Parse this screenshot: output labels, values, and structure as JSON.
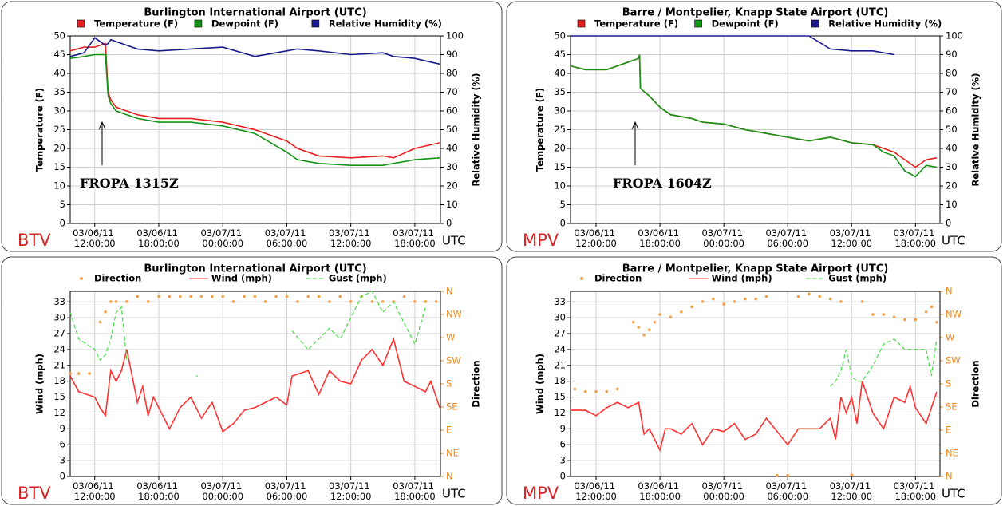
{
  "chart_data": [
    {
      "type": "line",
      "title": "Burlington International Airport  (UTC)",
      "station": "BTV",
      "timezone": "UTC",
      "annotation": "FROPA 1315Z",
      "ylabel": "Temperature (F)",
      "y2label": "Relative Humidity (%)",
      "xlim": [
        "03/06/11 09:42:00",
        "03/07/11 20:24:00"
      ],
      "xticks": [
        "03/06/11 12:00:00",
        "03/06/11 18:00:00",
        "03/07/11 00:00:00",
        "03/07/11 06:00:00",
        "03/07/11 12:00:00",
        "03/07/11 18:00:00"
      ],
      "ylim": [
        0,
        50
      ],
      "yticks": [
        0,
        5,
        10,
        15,
        20,
        25,
        30,
        35,
        40,
        45,
        50
      ],
      "y2lim": [
        0,
        100
      ],
      "y2ticks": [
        0,
        10,
        20,
        30,
        40,
        50,
        60,
        70,
        80,
        90,
        100
      ],
      "grid": true,
      "x": [
        "03/06/11 09:42:00",
        "03/06/11 11:00:00",
        "03/06/11 12:00:00",
        "03/06/11 13:00:00",
        "03/06/11 13:15:00",
        "03/06/11 13:30:00",
        "03/06/11 14:00:00",
        "03/06/11 15:00:00",
        "03/06/11 16:00:00",
        "03/06/11 18:00:00",
        "03/06/11 21:00:00",
        "03/07/11 00:00:00",
        "03/07/11 03:00:00",
        "03/07/11 06:00:00",
        "03/07/11 07:00:00",
        "03/07/11 09:00:00",
        "03/07/11 12:00:00",
        "03/07/11 15:00:00",
        "03/07/11 16:00:00",
        "03/07/11 18:00:00",
        "03/07/11 20:20:00"
      ],
      "series": [
        {
          "name": "Temperature (F)",
          "color": "#e82020",
          "style": "solid",
          "values": [
            46,
            47,
            47,
            48,
            35,
            33,
            31,
            30,
            29,
            28,
            28,
            27,
            25,
            22,
            20,
            18,
            17.5,
            18,
            17.5,
            20,
            21.5
          ]
        },
        {
          "name": "Dewpoint (F)",
          "color": "#139413",
          "style": "solid",
          "values": [
            44,
            44.5,
            45,
            45,
            34,
            32,
            30,
            29,
            28,
            27,
            27,
            26,
            24,
            19,
            17,
            16,
            15.5,
            15.5,
            16,
            17,
            17.5
          ]
        },
        {
          "name": "Relative Humidity (%)",
          "color": "#1a1a8c",
          "style": "solid",
          "axis": "y2",
          "values": [
            89,
            91,
            99,
            95,
            96,
            98,
            97,
            95,
            93,
            92,
            93,
            94,
            89,
            92,
            93,
            92,
            90,
            91,
            89,
            88,
            85
          ]
        }
      ]
    },
    {
      "type": "line",
      "title": "Barre / Montpelier, Knapp State Airport  (UTC)",
      "station": "MPV",
      "timezone": "UTC",
      "annotation": "FROPA 1604Z",
      "ylabel": "Temperature (F)",
      "y2label": "Relative Humidity (%)",
      "xlim": [
        "03/06/11 09:36:00",
        "03/07/11 20:18:00"
      ],
      "xticks": [
        "03/06/11 12:00:00",
        "03/06/11 18:00:00",
        "03/07/11 00:00:00",
        "03/07/11 06:00:00",
        "03/07/11 12:00:00",
        "03/07/11 18:00:00"
      ],
      "ylim": [
        0,
        50
      ],
      "yticks": [
        0,
        5,
        10,
        15,
        20,
        25,
        30,
        35,
        40,
        45,
        50
      ],
      "y2lim": [
        0,
        100
      ],
      "y2ticks": [
        0,
        10,
        20,
        30,
        40,
        50,
        60,
        70,
        80,
        90,
        100
      ],
      "grid": true,
      "x": [
        "03/06/11 09:36:00",
        "03/06/11 11:00:00",
        "03/06/11 12:00:00",
        "03/06/11 13:00:00",
        "03/06/11 14:00:00",
        "03/06/11 15:00:00",
        "03/06/11 16:00:00",
        "03/06/11 16:05:00",
        "03/06/11 16:10:00",
        "03/06/11 17:00:00",
        "03/06/11 18:00:00",
        "03/06/11 19:00:00",
        "03/06/11 21:00:00",
        "03/06/11 22:00:00",
        "03/07/11 00:00:00",
        "03/07/11 02:00:00",
        "03/07/11 04:00:00",
        "03/07/11 06:00:00",
        "03/07/11 08:00:00",
        "03/07/11 10:00:00",
        "03/07/11 12:00:00",
        "03/07/11 14:00:00",
        "03/07/11 15:00:00",
        "03/07/11 16:00:00",
        "03/07/11 17:00:00",
        "03/07/11 18:00:00",
        "03/07/11 19:00:00",
        "03/07/11 20:00:00"
      ],
      "series": [
        {
          "name": "Temperature (F)",
          "color": "#e82020",
          "style": "solid",
          "values": [
            42,
            41,
            41,
            41,
            42,
            43,
            44,
            45,
            36,
            34,
            31,
            29,
            28,
            27,
            26.5,
            25,
            24,
            23,
            22,
            23,
            21.5,
            21,
            20,
            19,
            17,
            15,
            17,
            17.5
          ]
        },
        {
          "name": "Dewpoint (F)",
          "color": "#139413",
          "style": "solid",
          "values": [
            42,
            41,
            41,
            41,
            42,
            43,
            44,
            45,
            36,
            34,
            31,
            29,
            28,
            27,
            26.5,
            25,
            24,
            23,
            22,
            23,
            21.5,
            21,
            19,
            18,
            14,
            12.5,
            15.5,
            15
          ]
        },
        {
          "name": "Relative Humidity (%)",
          "color": "#1a1a8c",
          "style": "solid",
          "axis": "y2",
          "values": [
            100,
            100,
            100,
            100,
            100,
            100,
            100,
            100,
            100,
            100,
            100,
            100,
            100,
            100,
            100,
            100,
            100,
            100,
            100,
            93,
            92,
            92,
            91,
            90,
            null,
            null,
            null,
            null
          ]
        }
      ]
    },
    {
      "type": "line",
      "title": "Burlington International Airport  (UTC)",
      "station": "BTV",
      "timezone": "UTC",
      "ylabel": "Wind (mph)",
      "y2label": "Direction",
      "xlim": [
        "03/06/11 09:42:00",
        "03/07/11 20:24:00"
      ],
      "xticks": [
        "03/06/11 12:00:00",
        "03/06/11 18:00:00",
        "03/07/11 00:00:00",
        "03/07/11 06:00:00",
        "03/07/11 12:00:00",
        "03/07/11 18:00:00"
      ],
      "ylim": [
        0,
        35
      ],
      "yticks": [
        0,
        3,
        6,
        9,
        12,
        15,
        18,
        21,
        24,
        27,
        30,
        33
      ],
      "y2lim": [
        0,
        360
      ],
      "y2ticks": [
        {
          "value": 0,
          "label": "N"
        },
        {
          "value": 45,
          "label": "NE"
        },
        {
          "value": 90,
          "label": "E"
        },
        {
          "value": 135,
          "label": "SE"
        },
        {
          "value": 180,
          "label": "S"
        },
        {
          "value": 225,
          "label": "SW"
        },
        {
          "value": 270,
          "label": "W"
        },
        {
          "value": 315,
          "label": "NW"
        },
        {
          "value": 360,
          "label": "N"
        }
      ],
      "grid": true,
      "x": [
        "03/06/11 09:42:00",
        "03/06/11 10:30:00",
        "03/06/11 12:00:00",
        "03/06/11 12:30:00",
        "03/06/11 13:00:00",
        "03/06/11 13:30:00",
        "03/06/11 14:00:00",
        "03/06/11 14:30:00",
        "03/06/11 15:00:00",
        "03/06/11 16:00:00",
        "03/06/11 16:30:00",
        "03/06/11 17:00:00",
        "03/06/11 17:30:00",
        "03/06/11 19:00:00",
        "03/06/11 20:00:00",
        "03/06/11 21:00:00",
        "03/06/11 21:30:00",
        "03/06/11 22:00:00",
        "03/06/11 23:00:00",
        "03/07/11 00:00:00",
        "03/07/11 01:00:00",
        "03/07/11 02:00:00",
        "03/07/11 03:00:00",
        "03/07/11 05:00:00",
        "03/07/11 06:00:00",
        "03/07/11 06:30:00",
        "03/07/11 08:00:00",
        "03/07/11 09:00:00",
        "03/07/11 10:00:00",
        "03/07/11 11:00:00",
        "03/07/11 12:00:00",
        "03/07/11 13:00:00",
        "03/07/11 14:00:00",
        "03/07/11 15:00:00",
        "03/07/11 16:00:00",
        "03/07/11 17:00:00",
        "03/07/11 18:00:00",
        "03/07/11 19:00:00",
        "03/07/11 19:30:00",
        "03/07/11 20:20:00"
      ],
      "series": [
        {
          "name": "Direction",
          "color": "#f5a04a",
          "style": "dots",
          "axis": "y2",
          "x": [
            "03/06/11 09:42:00",
            "03/06/11 10:30:00",
            "03/06/11 11:30:00",
            "03/06/11 12:30:00",
            "03/06/11 13:00:00",
            "03/06/11 13:30:00",
            "03/06/11 14:00:00",
            "03/06/11 15:00:00",
            "03/06/11 16:00:00",
            "03/06/11 17:00:00",
            "03/06/11 18:00:00",
            "03/06/11 19:00:00",
            "03/06/11 20:00:00",
            "03/06/11 21:00:00",
            "03/06/11 22:00:00",
            "03/06/11 23:00:00",
            "03/07/11 00:00:00",
            "03/07/11 01:00:00",
            "03/07/11 02:00:00",
            "03/07/11 03:00:00",
            "03/07/11 04:00:00",
            "03/07/11 05:00:00",
            "03/07/11 06:00:00",
            "03/07/11 07:00:00",
            "03/07/11 08:00:00",
            "03/07/11 09:00:00",
            "03/07/11 10:00:00",
            "03/07/11 11:00:00",
            "03/07/11 12:00:00",
            "03/07/11 13:00:00",
            "03/07/11 14:00:00",
            "03/07/11 15:00:00",
            "03/07/11 16:00:00",
            "03/07/11 17:00:00",
            "03/07/11 18:00:00",
            "03/07/11 19:00:00",
            "03/07/11 20:00:00"
          ],
          "values": [
            200,
            200,
            200,
            300,
            320,
            340,
            340,
            340,
            350,
            340,
            350,
            350,
            350,
            350,
            350,
            350,
            350,
            340,
            350,
            350,
            340,
            350,
            350,
            340,
            350,
            350,
            340,
            350,
            340,
            350,
            340,
            340,
            340,
            350,
            340,
            340,
            340
          ]
        },
        {
          "name": "Wind (mph)",
          "color": "#ff3030",
          "style": "solid",
          "values": [
            19,
            16,
            15,
            13,
            11.5,
            20,
            18,
            20,
            24,
            14,
            17,
            11.5,
            15,
            9,
            13,
            15,
            13,
            11,
            14,
            8.5,
            10,
            12.5,
            13,
            15,
            13.5,
            19,
            20,
            15.5,
            20,
            18,
            17.5,
            22,
            24,
            21,
            26,
            18,
            17,
            16,
            18,
            13
          ]
        },
        {
          "name": "Gust (mph)",
          "color": "#44dd44",
          "style": "dashed",
          "values": [
            31,
            26,
            24,
            22,
            23,
            26,
            31,
            32,
            22,
            null,
            null,
            null,
            null,
            null,
            null,
            null,
            19,
            null,
            null,
            null,
            null,
            null,
            null,
            null,
            null,
            27.5,
            24,
            26,
            28,
            26,
            30,
            34,
            35,
            31,
            33,
            29,
            25,
            32,
            null,
            null
          ]
        }
      ]
    },
    {
      "type": "line",
      "title": "Barre / Montpelier, Knapp State Airport  (UTC)",
      "station": "MPV",
      "timezone": "UTC",
      "ylabel": "Wind (mph)",
      "y2label": "Direction",
      "xlim": [
        "03/06/11 09:36:00",
        "03/07/11 20:18:00"
      ],
      "xticks": [
        "03/06/11 12:00:00",
        "03/06/11 18:00:00",
        "03/07/11 00:00:00",
        "03/07/11 06:00:00",
        "03/07/11 12:00:00",
        "03/07/11 18:00:00"
      ],
      "ylim": [
        0,
        35
      ],
      "yticks": [
        0,
        3,
        6,
        9,
        12,
        15,
        18,
        21,
        24,
        27,
        30,
        33
      ],
      "y2lim": [
        0,
        360
      ],
      "y2ticks": [
        {
          "value": 0,
          "label": "N"
        },
        {
          "value": 45,
          "label": "NE"
        },
        {
          "value": 90,
          "label": "E"
        },
        {
          "value": 135,
          "label": "SE"
        },
        {
          "value": 180,
          "label": "S"
        },
        {
          "value": 225,
          "label": "SW"
        },
        {
          "value": 270,
          "label": "W"
        },
        {
          "value": 315,
          "label": "NW"
        },
        {
          "value": 360,
          "label": "N"
        }
      ],
      "grid": true,
      "x": [
        "03/06/11 09:36:00",
        "03/06/11 11:00:00",
        "03/06/11 12:00:00",
        "03/06/11 13:00:00",
        "03/06/11 14:00:00",
        "03/06/11 15:00:00",
        "03/06/11 16:00:00",
        "03/06/11 16:30:00",
        "03/06/11 17:00:00",
        "03/06/11 18:00:00",
        "03/06/11 18:30:00",
        "03/06/11 19:00:00",
        "03/06/11 20:00:00",
        "03/06/11 21:00:00",
        "03/06/11 22:00:00",
        "03/06/11 23:00:00",
        "03/07/11 00:00:00",
        "03/07/11 01:00:00",
        "03/07/11 02:00:00",
        "03/07/11 03:00:00",
        "03/07/11 04:00:00",
        "03/07/11 06:00:00",
        "03/07/11 07:00:00",
        "03/07/11 09:00:00",
        "03/07/11 10:00:00",
        "03/07/11 10:30:00",
        "03/07/11 11:00:00",
        "03/07/11 11:30:00",
        "03/07/11 12:00:00",
        "03/07/11 12:30:00",
        "03/07/11 13:00:00",
        "03/07/11 14:00:00",
        "03/07/11 15:00:00",
        "03/07/11 16:00:00",
        "03/07/11 17:00:00",
        "03/07/11 17:30:00",
        "03/07/11 18:00:00",
        "03/07/11 19:00:00",
        "03/07/11 19:30:00",
        "03/07/11 20:00:00"
      ],
      "series": [
        {
          "name": "Direction",
          "color": "#f5a04a",
          "style": "dots",
          "axis": "y2",
          "x": [
            "03/06/11 10:00:00",
            "03/06/11 11:00:00",
            "03/06/11 12:00:00",
            "03/06/11 13:00:00",
            "03/06/11 14:00:00",
            "03/06/11 15:30:00",
            "03/06/11 16:00:00",
            "03/06/11 16:30:00",
            "03/06/11 17:00:00",
            "03/06/11 17:30:00",
            "03/06/11 18:00:00",
            "03/06/11 19:00:00",
            "03/06/11 20:00:00",
            "03/06/11 21:00:00",
            "03/06/11 22:00:00",
            "03/06/11 23:00:00",
            "03/07/11 00:00:00",
            "03/07/11 01:00:00",
            "03/07/11 02:00:00",
            "03/07/11 03:00:00",
            "03/07/11 04:00:00",
            "03/07/11 05:00:00",
            "03/07/11 06:00:00",
            "03/07/11 07:00:00",
            "03/07/11 08:00:00",
            "03/07/11 09:00:00",
            "03/07/11 10:00:00",
            "03/07/11 11:00:00",
            "03/07/11 12:00:00",
            "03/07/11 13:00:00",
            "03/07/11 14:00:00",
            "03/07/11 15:00:00",
            "03/07/11 16:00:00",
            "03/07/11 17:00:00",
            "03/07/11 18:00:00",
            "03/07/11 19:00:00",
            "03/07/11 19:30:00",
            "03/07/11 20:00:00"
          ],
          "values": [
            170,
            165,
            165,
            165,
            170,
            300,
            290,
            275,
            285,
            300,
            315,
            310,
            320,
            330,
            340,
            345,
            335,
            340,
            345,
            345,
            350,
            2,
            2,
            350,
            355,
            350,
            345,
            340,
            3,
            340,
            315,
            315,
            310,
            305,
            305,
            320,
            330,
            300
          ]
        },
        {
          "name": "Wind (mph)",
          "color": "#ff3030",
          "style": "solid",
          "values": [
            12.5,
            12.5,
            11.5,
            13,
            14,
            13,
            14,
            8,
            9,
            5,
            9,
            9,
            8,
            10,
            6,
            9,
            8.5,
            10,
            7,
            8,
            11,
            6,
            9,
            9,
            11,
            7,
            15,
            12,
            15,
            10,
            18,
            12,
            9,
            15,
            14,
            17,
            13,
            10,
            13,
            16
          ]
        },
        {
          "name": "Gust (mph)",
          "color": "#44dd44",
          "style": "dashed",
          "values": [
            null,
            null,
            null,
            null,
            null,
            null,
            null,
            null,
            null,
            null,
            null,
            null,
            null,
            null,
            null,
            null,
            null,
            null,
            null,
            null,
            null,
            null,
            null,
            null,
            17,
            18,
            20,
            24,
            19,
            18,
            18,
            21,
            25,
            26,
            24,
            24,
            24,
            24,
            19,
            26
          ]
        }
      ]
    }
  ]
}
